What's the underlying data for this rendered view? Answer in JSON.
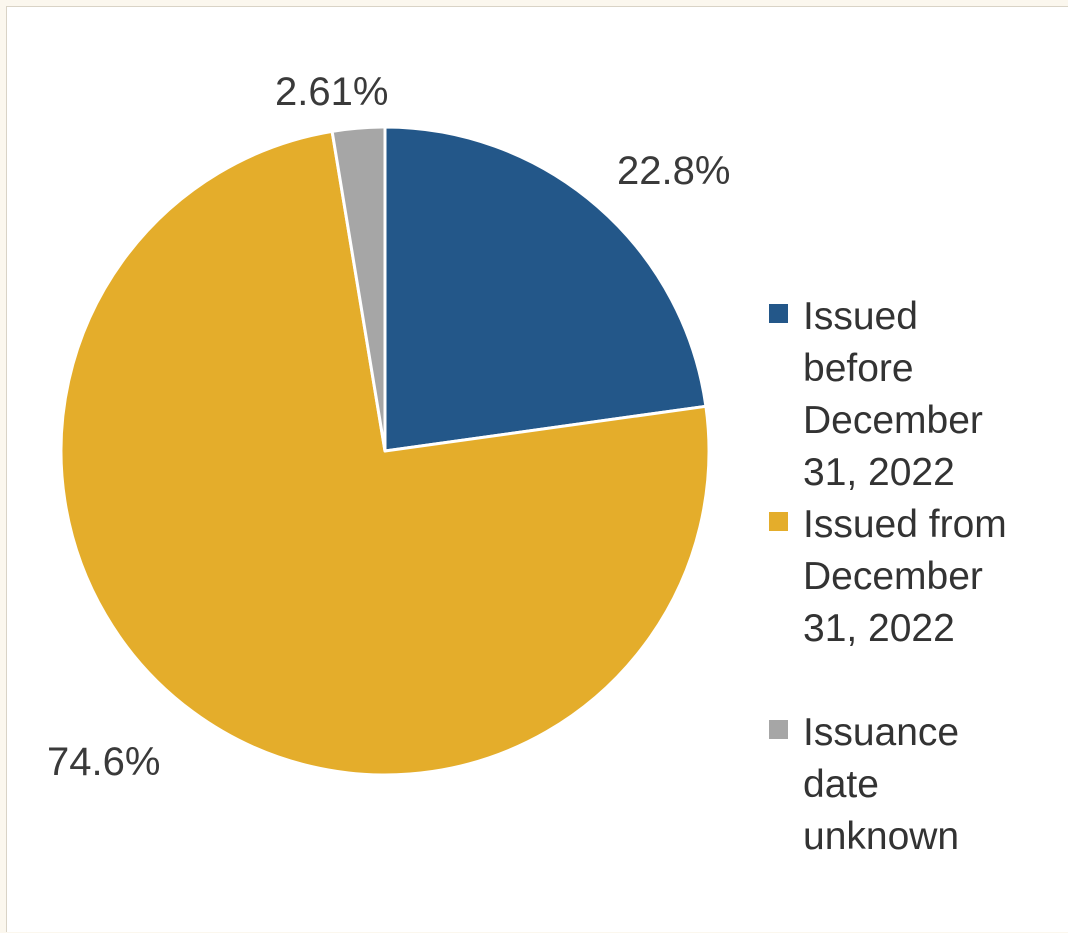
{
  "chart_data": {
    "type": "pie",
    "title": "",
    "slices": [
      {
        "name": "Issued before December 31, 2022",
        "value": 22.8,
        "label": "22.8%",
        "color": "#235789"
      },
      {
        "name": "Issued from December 31, 2022",
        "value": 74.6,
        "label": "74.6%",
        "color": "#e4ad2b"
      },
      {
        "name": "Issuance date unknown",
        "value": 2.61,
        "label": "2.61%",
        "color": "#a6a6a6"
      }
    ],
    "start_angle": "12 o'clock",
    "direction": "clockwise",
    "legend_position": "right",
    "slice_border_color": "#ffffff"
  },
  "legend": {
    "items": [
      {
        "lines": [
          "Issued",
          "before",
          "December",
          "31, 2022"
        ],
        "color": "#235789"
      },
      {
        "lines": [
          "Issued from",
          "December",
          "31, 2022"
        ],
        "color": "#e4ad2b"
      },
      {
        "lines": [
          "Issuance",
          "date",
          "unknown"
        ],
        "color": "#a6a6a6"
      }
    ]
  }
}
